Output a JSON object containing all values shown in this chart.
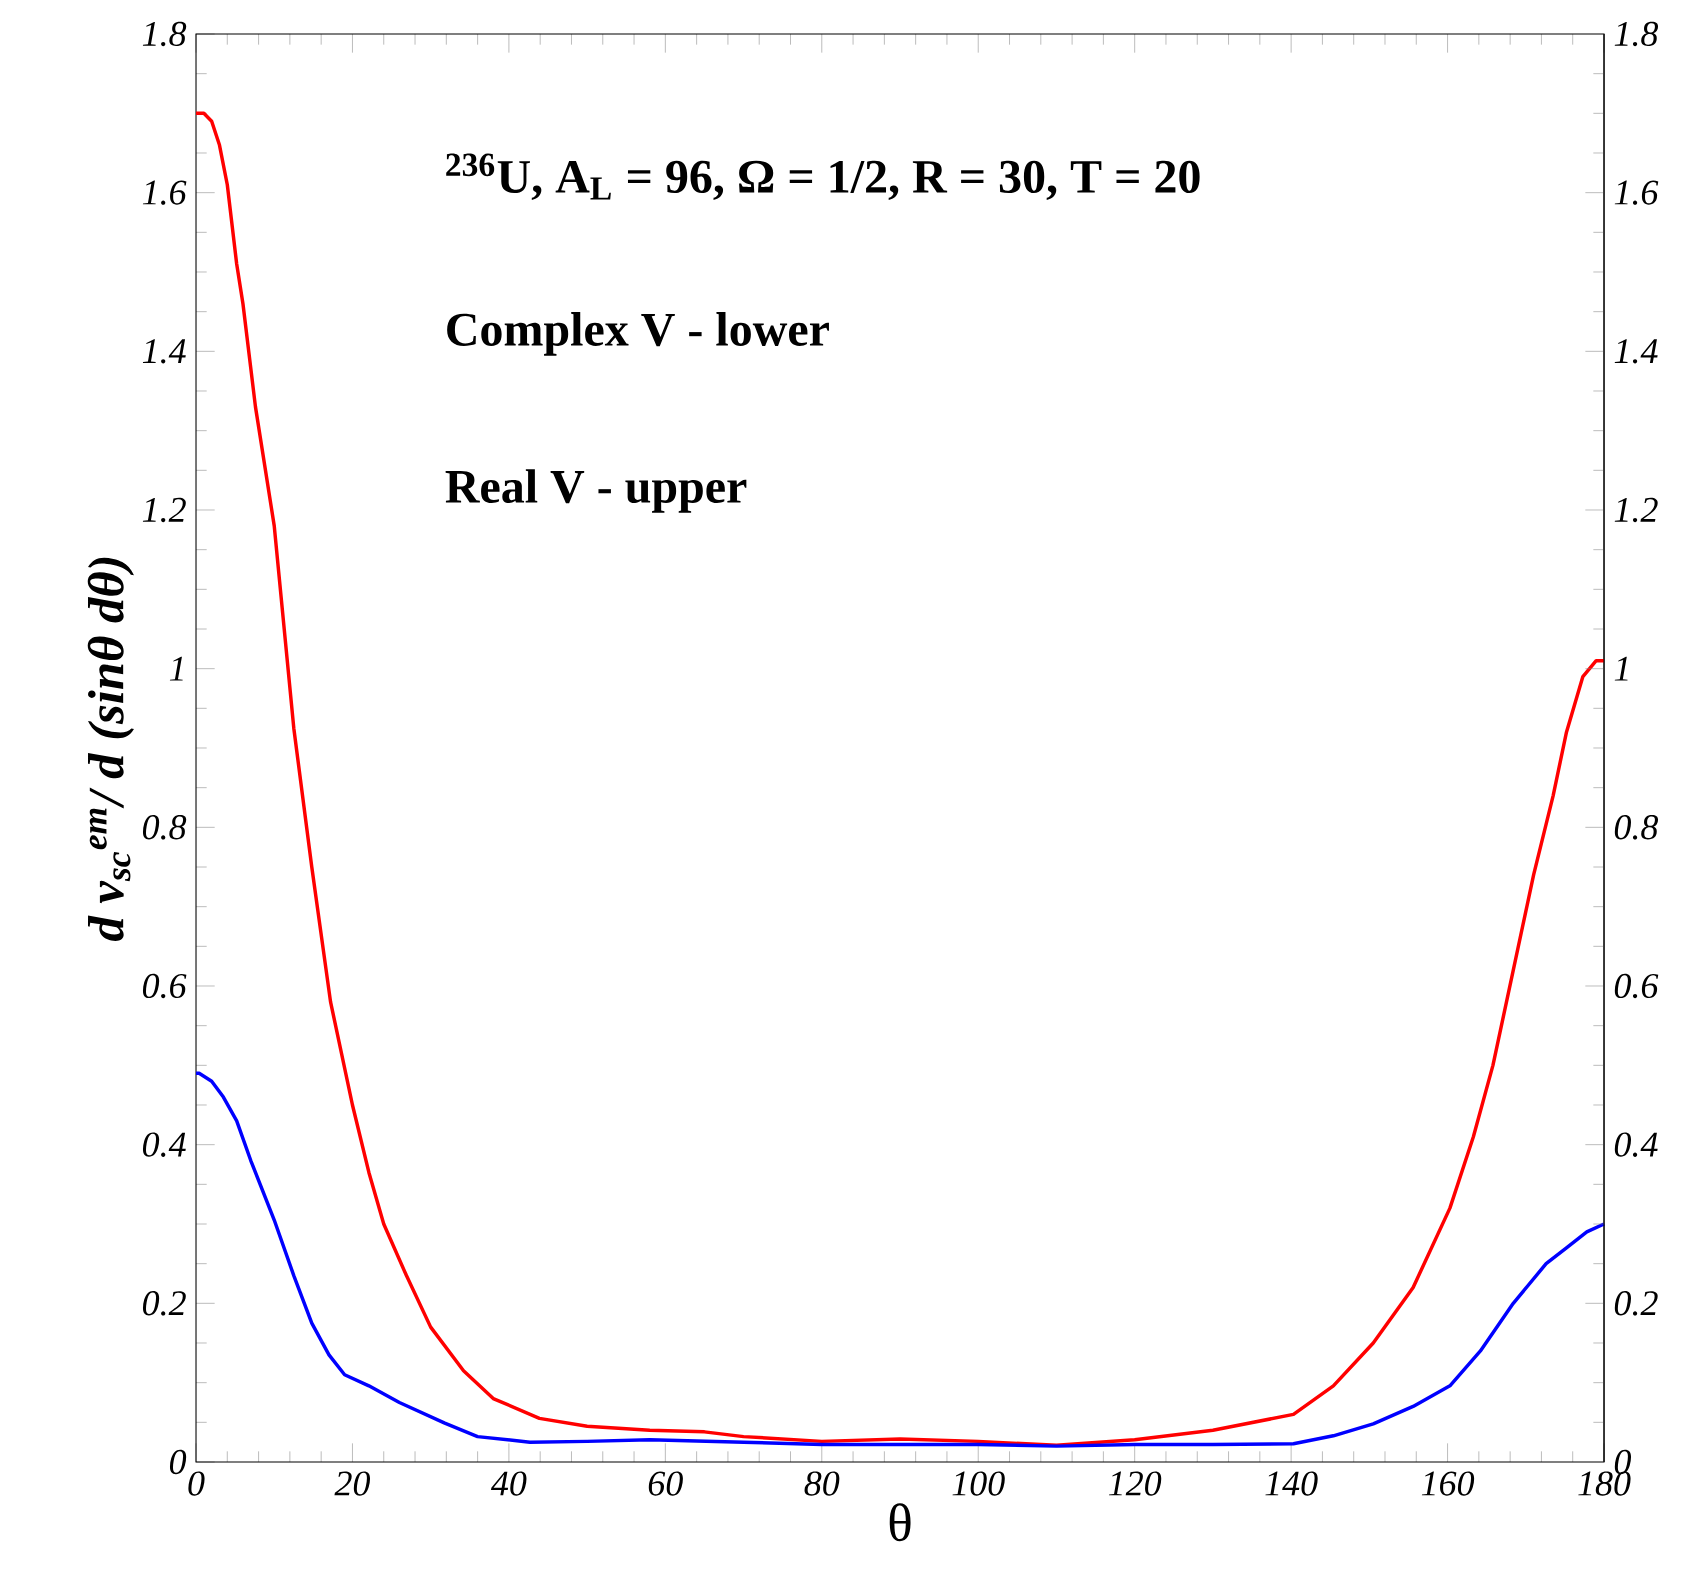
{
  "chart_data": {
    "type": "line",
    "xlabel": "θ",
    "ylabel": "d ν$_{sc}$$^{em}$/ d (sinθ dθ)",
    "annotations": [
      "$^{236}$U, A$_{L}$ = 96, Ω = 1/2, R = 30, T = 20",
      "Complex V - lower",
      "Real V - upper"
    ],
    "series": [
      {
        "color": "#ff0000",
        "x": [
          0,
          1,
          2,
          3,
          4,
          5.2,
          6,
          7.6,
          10,
          12.5,
          14.8,
          17.2,
          20,
          22.1,
          24,
          26.9,
          30,
          34.2,
          38,
          43.9,
          50,
          58,
          65,
          70,
          80,
          90,
          100,
          110,
          120,
          130,
          140.3,
          145.4,
          150.5,
          155.6,
          160.3,
          163.3,
          165.8,
          168.4,
          171,
          173.5,
          175.2,
          177.3,
          179,
          180
        ],
        "values": [
          1.7,
          1.7,
          1.69,
          1.66,
          1.61,
          1.51,
          1.46,
          1.33,
          1.18,
          0.925,
          0.75,
          0.58,
          0.45,
          0.365,
          0.3,
          0.235,
          0.17,
          0.115,
          0.08,
          0.055,
          0.045,
          0.04,
          0.038,
          0.032,
          0.026,
          0.029,
          0.026,
          0.021,
          0.028,
          0.04,
          0.06,
          0.096,
          0.15,
          0.22,
          0.32,
          0.41,
          0.5,
          0.62,
          0.74,
          0.84,
          0.92,
          0.99,
          1.01,
          1.01
        ]
      },
      {
        "color": "#0000ff",
        "x": [
          0,
          0.4,
          2,
          3.5,
          5.2,
          7,
          10,
          12.5,
          14.8,
          17,
          19,
          22.1,
          26,
          31.8,
          36,
          42.7,
          50,
          58,
          70,
          80,
          90,
          100,
          110,
          120,
          130,
          140.3,
          145.4,
          150.5,
          155.6,
          160.3,
          164.2,
          168.4,
          172.6,
          175.2,
          177.8,
          180
        ],
        "values": [
          0.49,
          0.49,
          0.48,
          0.46,
          0.43,
          0.38,
          0.305,
          0.235,
          0.175,
          0.135,
          0.11,
          0.096,
          0.075,
          0.049,
          0.032,
          0.025,
          0.026,
          0.028,
          0.025,
          0.022,
          0.022,
          0.022,
          0.02,
          0.022,
          0.022,
          0.023,
          0.033,
          0.048,
          0.07,
          0.096,
          0.14,
          0.2,
          0.25,
          0.27,
          0.29,
          0.3
        ]
      }
    ],
    "xlim": [
      0,
      180
    ],
    "ylim": [
      0,
      1.8
    ],
    "xticks": [
      0,
      20,
      40,
      60,
      80,
      100,
      120,
      140,
      160,
      180
    ],
    "yticks": [
      0,
      0.2,
      0.4,
      0.6,
      0.8,
      1,
      1.2,
      1.4,
      1.6,
      1.8
    ],
    "y2lim": [
      0,
      1.8
    ],
    "y2ticks": [
      0,
      0.2,
      0.4,
      0.6,
      0.8,
      1,
      1.2,
      1.4,
      1.6,
      1.8
    ]
  }
}
